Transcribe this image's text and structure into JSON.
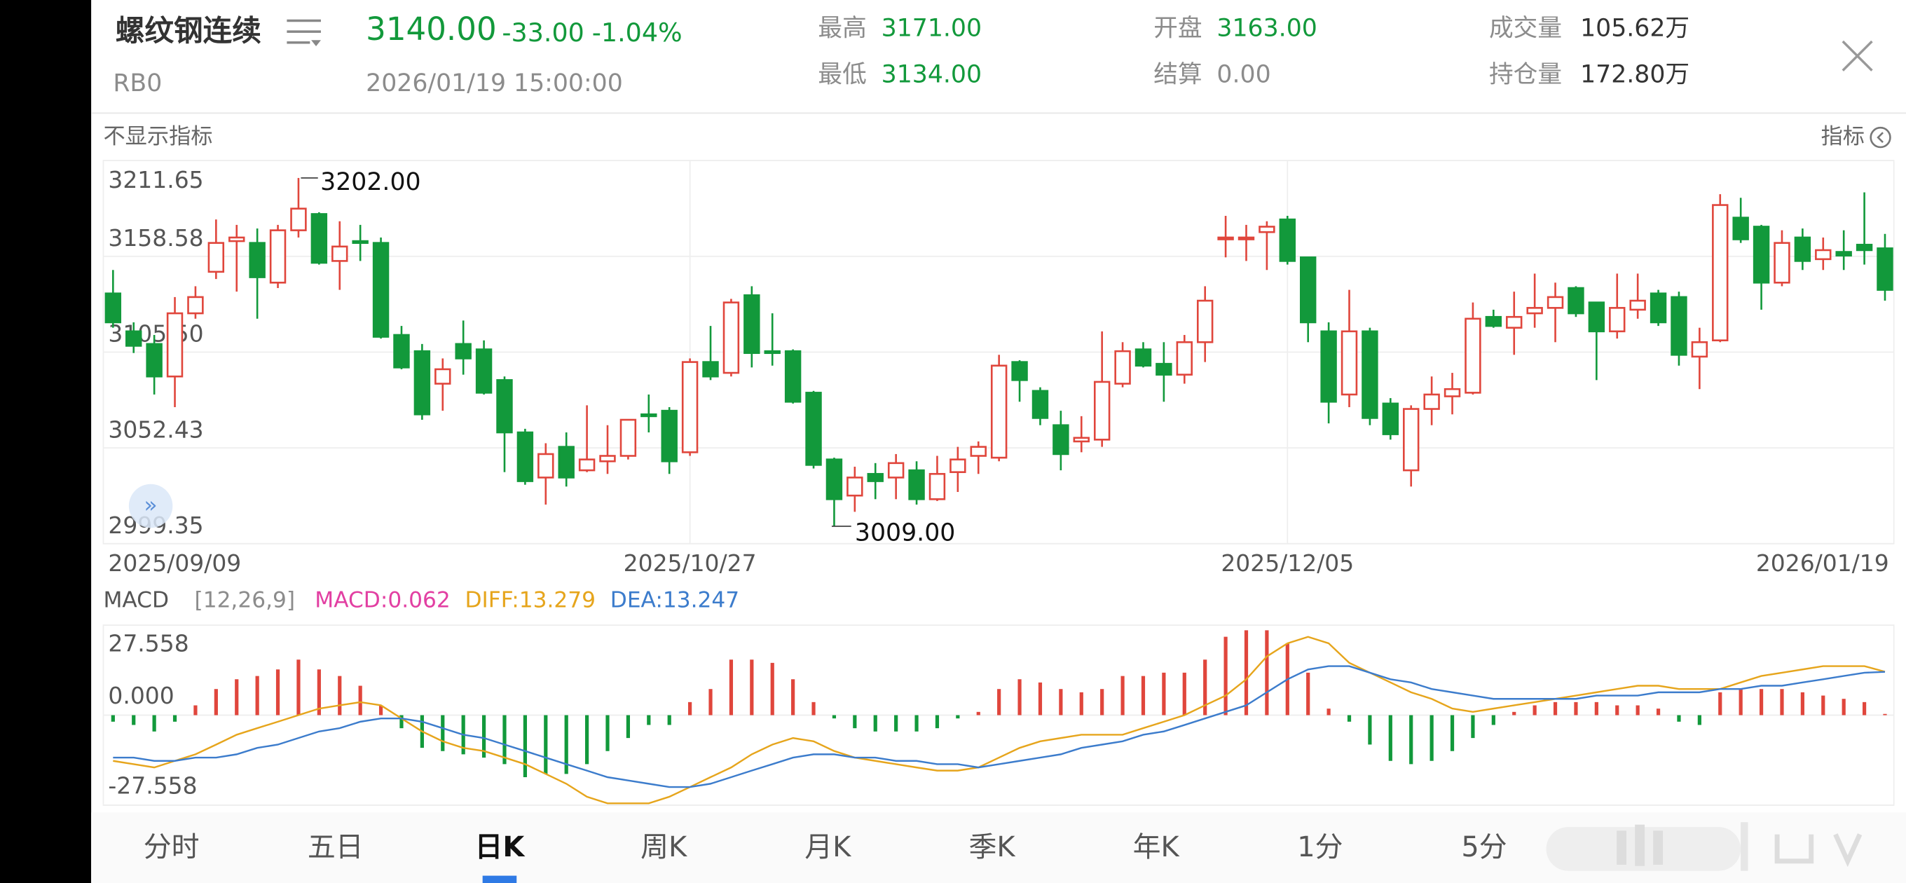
{
  "header": {
    "name": "螺纹钢连续",
    "code": "RB0",
    "price": "3140.00",
    "change": "-33.00",
    "change_pct": "-1.04%",
    "time": "2026/01/19 15:00:00",
    "stats": [
      {
        "label": "最高",
        "value": "3171.00"
      },
      {
        "label": "最低",
        "value": "3134.00"
      },
      {
        "label": "开盘",
        "value": "3163.00"
      },
      {
        "label": "结算",
        "value": "0.00"
      },
      {
        "label": "成交量",
        "value": "105.62万"
      },
      {
        "label": "持仓量",
        "value": "172.80万"
      }
    ]
  },
  "toolbar": {
    "left": "不显示指标",
    "right": "指标"
  },
  "chart_data": [
    {
      "type": "candlestick",
      "up_color": "#e0463c",
      "down_color": "#12993b",
      "grid": true,
      "categories": [
        "2025/09/09",
        null,
        null,
        null,
        null,
        null,
        null,
        null,
        null,
        null,
        null,
        null,
        null,
        null,
        null,
        null,
        null,
        null,
        null,
        null,
        null,
        null,
        null,
        null,
        null,
        null,
        null,
        null,
        "2025/10/27",
        null,
        null,
        null,
        null,
        null,
        null,
        null,
        null,
        null,
        null,
        null,
        null,
        null,
        null,
        null,
        null,
        null,
        null,
        null,
        null,
        null,
        null,
        null,
        null,
        null,
        null,
        null,
        null,
        "2025/12/05",
        null,
        null,
        null,
        null,
        null,
        null,
        null,
        null,
        null,
        null,
        null,
        null,
        null,
        null,
        null,
        null,
        null,
        null,
        null,
        null,
        null,
        null,
        null,
        null,
        null,
        null,
        null,
        null,
        "2026/01/19"
      ],
      "open": [
        3138,
        3117,
        3110,
        3092,
        3127,
        3150,
        3167,
        3166,
        3144,
        3173,
        3182,
        3156,
        3167,
        3166,
        3115,
        3106,
        3088,
        3110,
        3107,
        3090,
        3061,
        3036,
        3053,
        3040,
        3045,
        3048,
        3071,
        3073,
        3050,
        3100,
        3094,
        3137,
        3106,
        3106,
        3083,
        3046,
        3026,
        3038,
        3036,
        3040,
        3024,
        3039,
        3048,
        3047,
        3100,
        3084,
        3065,
        3056,
        3057,
        3088,
        3107,
        3099,
        3093,
        3111,
        3168,
        3168,
        3172,
        3179,
        3158,
        3117,
        3082,
        3117,
        3077,
        3040,
        3074,
        3081,
        3083,
        3125,
        3119,
        3127,
        3130,
        3141,
        3133,
        3117,
        3129,
        3138,
        3136,
        3103,
        3112,
        3180,
        3175,
        3144,
        3169,
        3157,
        3161,
        3165,
        3163
      ],
      "high": [
        3151,
        3122,
        3115,
        3136,
        3142,
        3179,
        3176,
        3174,
        3176,
        3202,
        3183,
        3178,
        3176,
        3169,
        3120,
        3110,
        3102,
        3123,
        3112,
        3092,
        3063,
        3055,
        3061,
        3076,
        3065,
        3068,
        3082,
        3075,
        3102,
        3120,
        3135,
        3142,
        3127,
        3107,
        3084,
        3047,
        3042,
        3044,
        3049,
        3045,
        3048,
        3053,
        3056,
        3104,
        3101,
        3086,
        3073,
        3070,
        3117,
        3111,
        3111,
        3111,
        3115,
        3142,
        3181,
        3176,
        3178,
        3181,
        3158,
        3122,
        3140,
        3119,
        3080,
        3076,
        3092,
        3094,
        3133,
        3129,
        3139,
        3149,
        3144,
        3142,
        3133,
        3149,
        3149,
        3140,
        3139,
        3119,
        3193,
        3191,
        3176,
        3173,
        3174,
        3169,
        3173,
        3194,
        3171
      ],
      "low": [
        3119,
        3105,
        3082,
        3075,
        3124,
        3146,
        3139,
        3124,
        3141,
        3169,
        3154,
        3140,
        3156,
        3113,
        3096,
        3068,
        3073,
        3093,
        3082,
        3039,
        3032,
        3021,
        3031,
        3039,
        3038,
        3046,
        3061,
        3038,
        3048,
        3090,
        3092,
        3097,
        3098,
        3077,
        3041,
        3009,
        3017,
        3024,
        3024,
        3021,
        3023,
        3028,
        3038,
        3045,
        3078,
        3065,
        3040,
        3050,
        3053,
        3086,
        3097,
        3078,
        3088,
        3100,
        3158,
        3156,
        3151,
        3154,
        3111,
        3066,
        3075,
        3065,
        3057,
        3031,
        3065,
        3071,
        3082,
        3119,
        3104,
        3119,
        3111,
        3125,
        3090,
        3113,
        3124,
        3120,
        3098,
        3085,
        3111,
        3166,
        3129,
        3142,
        3151,
        3151,
        3151,
        3154,
        3134
      ],
      "close": [
        3122,
        3109,
        3092,
        3127,
        3136,
        3166,
        3169,
        3147,
        3173,
        3185,
        3155,
        3164,
        3166,
        3114,
        3097,
        3071,
        3096,
        3102,
        3083,
        3061,
        3034,
        3049,
        3036,
        3046,
        3048,
        3068,
        3070,
        3045,
        3100,
        3092,
        3133,
        3105,
        3105,
        3078,
        3043,
        3024,
        3036,
        3034,
        3044,
        3024,
        3038,
        3046,
        3053,
        3098,
        3090,
        3069,
        3049,
        3058,
        3089,
        3106,
        3098,
        3093,
        3111,
        3134,
        3169,
        3169,
        3175,
        3156,
        3122,
        3078,
        3117,
        3069,
        3060,
        3074,
        3082,
        3085,
        3124,
        3120,
        3125,
        3130,
        3136,
        3127,
        3117,
        3130,
        3134,
        3122,
        3104,
        3111,
        3187,
        3168,
        3144,
        3166,
        3156,
        3162,
        3159,
        3162,
        3140
      ],
      "ylim": [
        2999.35,
        3211.65
      ],
      "yticks": [
        2999.35,
        3052.43,
        {
          "value": 3105.5,
          "label": "3105.50"
        },
        3158.58,
        3211.65
      ],
      "max_label": "3202.00",
      "min_label": "3009.00"
    },
    {
      "type": "macd",
      "title": "MACD",
      "params": "[12,26,9]",
      "up_color": "#e0463c",
      "down_color": "#12993b",
      "ylim": [
        -27.558,
        27.558
      ],
      "yticks": [
        -27.558,
        {
          "value": 0,
          "label": "0.000"
        },
        27.558
      ],
      "series": [
        {
          "name": "MACD:0.062",
          "color": "#e23fa2",
          "kind": "bar",
          "values": [
            -2,
            -3,
            -5,
            -2,
            3,
            8,
            11,
            12,
            14,
            17,
            14,
            12,
            9,
            3,
            -4,
            -10,
            -11,
            -12,
            -13,
            -15,
            -19,
            -18,
            -18,
            -15,
            -11,
            -7,
            -3,
            -3,
            4,
            8,
            17,
            17,
            16,
            11,
            4,
            -1,
            -4,
            -5,
            -5,
            -5,
            -4,
            -1,
            1,
            8,
            11,
            10,
            8,
            7,
            8,
            12,
            12,
            13,
            13,
            17,
            24,
            26,
            26,
            22,
            13,
            2,
            -2,
            -9,
            -14,
            -15,
            -14,
            -11,
            -7,
            -3,
            1,
            3,
            4,
            4,
            4,
            3,
            3,
            2,
            -2,
            -3,
            7,
            8,
            8,
            8,
            7,
            6,
            5,
            4,
            0.062
          ]
        },
        {
          "name": "DIFF:13.279",
          "color": "#e6a51c",
          "kind": "line",
          "values": [
            -14,
            -15,
            -16,
            -14,
            -12,
            -9,
            -6,
            -4,
            -2,
            0,
            2,
            3,
            4,
            3,
            -1,
            -5,
            -8,
            -10,
            -11,
            -13,
            -15,
            -18,
            -21,
            -25,
            -27,
            -27,
            -27,
            -25,
            -22,
            -19,
            -16,
            -12,
            -9,
            -7,
            -8,
            -11,
            -13,
            -14,
            -15,
            -16,
            -17,
            -17,
            -16,
            -13,
            -10,
            -8,
            -7,
            -6,
            -6,
            -6,
            -4,
            -2,
            0,
            3,
            6,
            11,
            18,
            22,
            24,
            22,
            16,
            13,
            10,
            7,
            5,
            2,
            1,
            2,
            3,
            4,
            5,
            6,
            7,
            8,
            9,
            9,
            8,
            8,
            8,
            10,
            12,
            13,
            14,
            15,
            15,
            15,
            13.279
          ]
        },
        {
          "name": "DEA:13.247",
          "color": "#3c7ccc",
          "kind": "line",
          "values": [
            -13,
            -13,
            -14,
            -14,
            -13,
            -13,
            -12,
            -10,
            -9,
            -7,
            -5,
            -4,
            -2,
            -1,
            -1,
            -2,
            -4,
            -6,
            -7,
            -9,
            -11,
            -13,
            -15,
            -17,
            -19,
            -20,
            -21,
            -22,
            -22,
            -21,
            -19,
            -17,
            -15,
            -13,
            -12,
            -12,
            -13,
            -13,
            -14,
            -14,
            -15,
            -15,
            -16,
            -15,
            -14,
            -13,
            -12,
            -10,
            -9,
            -8,
            -6,
            -5,
            -3,
            -1,
            1,
            3,
            7,
            11,
            14,
            15,
            15,
            13,
            11,
            10,
            8,
            7,
            6,
            5,
            5,
            5,
            5,
            5,
            6,
            6,
            6,
            7,
            7,
            7,
            8,
            8,
            9,
            9,
            10,
            11,
            12,
            13,
            13.247
          ]
        }
      ]
    }
  ],
  "tabs": [
    "分时",
    "五日",
    "日K",
    "周K",
    "月K",
    "季K",
    "年K",
    "1分",
    "5分"
  ],
  "active_tab": "日K"
}
